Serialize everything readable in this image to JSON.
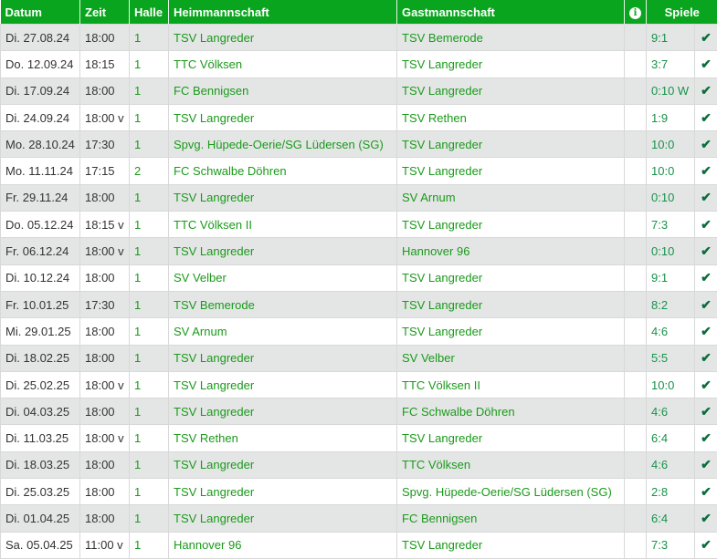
{
  "headers": {
    "datum": "Datum",
    "zeit": "Zeit",
    "halle": "Halle",
    "heim": "Heimmannschaft",
    "gast": "Gastmannschaft",
    "info_icon": "info-icon",
    "spiele": "Spiele"
  },
  "rows": [
    {
      "datum": "Di. 27.08.24",
      "zeit": "18:00",
      "halle": "1",
      "heim": "TSV Langreder",
      "gast": "TSV Bemerode",
      "spiele": "9:1"
    },
    {
      "datum": "Do. 12.09.24",
      "zeit": "18:15",
      "halle": "1",
      "heim": "TTC Völksen",
      "gast": "TSV Langreder",
      "spiele": "3:7"
    },
    {
      "datum": "Di. 17.09.24",
      "zeit": "18:00",
      "halle": "1",
      "heim": "FC Bennigsen",
      "gast": "TSV Langreder",
      "spiele": "0:10 W"
    },
    {
      "datum": "Di. 24.09.24",
      "zeit": "18:00 v",
      "halle": "1",
      "heim": "TSV Langreder",
      "gast": "TSV Rethen",
      "spiele": "1:9"
    },
    {
      "datum": "Mo. 28.10.24",
      "zeit": "17:30",
      "halle": "1",
      "heim": "Spvg. Hüpede-Oerie/SG Lüdersen (SG)",
      "gast": "TSV Langreder",
      "spiele": "10:0"
    },
    {
      "datum": "Mo. 11.11.24",
      "zeit": "17:15",
      "halle": "2",
      "heim": "FC Schwalbe Döhren",
      "gast": "TSV Langreder",
      "spiele": "10:0"
    },
    {
      "datum": "Fr. 29.11.24",
      "zeit": "18:00",
      "halle": "1",
      "heim": "TSV Langreder",
      "gast": "SV Arnum",
      "spiele": "0:10"
    },
    {
      "datum": "Do. 05.12.24",
      "zeit": "18:15 v",
      "halle": "1",
      "heim": "TTC Völksen II",
      "gast": "TSV Langreder",
      "spiele": "7:3"
    },
    {
      "datum": "Fr. 06.12.24",
      "zeit": "18:00 v",
      "halle": "1",
      "heim": "TSV Langreder",
      "gast": "Hannover 96",
      "spiele": "0:10"
    },
    {
      "datum": "Di. 10.12.24",
      "zeit": "18:00",
      "halle": "1",
      "heim": "SV Velber",
      "gast": "TSV Langreder",
      "spiele": "9:1"
    },
    {
      "datum": "Fr. 10.01.25",
      "zeit": "17:30",
      "halle": "1",
      "heim": "TSV Bemerode",
      "gast": "TSV Langreder",
      "spiele": "8:2"
    },
    {
      "datum": "Mi. 29.01.25",
      "zeit": "18:00",
      "halle": "1",
      "heim": "SV Arnum",
      "gast": "TSV Langreder",
      "spiele": "4:6"
    },
    {
      "datum": "Di. 18.02.25",
      "zeit": "18:00",
      "halle": "1",
      "heim": "TSV Langreder",
      "gast": "SV Velber",
      "spiele": "5:5"
    },
    {
      "datum": "Di. 25.02.25",
      "zeit": "18:00 v",
      "halle": "1",
      "heim": "TSV Langreder",
      "gast": "TTC Völksen II",
      "spiele": "10:0"
    },
    {
      "datum": "Di. 04.03.25",
      "zeit": "18:00",
      "halle": "1",
      "heim": "TSV Langreder",
      "gast": "FC Schwalbe Döhren",
      "spiele": "4:6"
    },
    {
      "datum": "Di. 11.03.25",
      "zeit": "18:00 v",
      "halle": "1",
      "heim": "TSV Rethen",
      "gast": "TSV Langreder",
      "spiele": "6:4"
    },
    {
      "datum": "Di. 18.03.25",
      "zeit": "18:00",
      "halle": "1",
      "heim": "TSV Langreder",
      "gast": "TTC Völksen",
      "spiele": "4:6"
    },
    {
      "datum": "Di. 25.03.25",
      "zeit": "18:00",
      "halle": "1",
      "heim": "TSV Langreder",
      "gast": "Spvg. Hüpede-Oerie/SG Lüdersen (SG)",
      "spiele": "2:8"
    },
    {
      "datum": "Di. 01.04.25",
      "zeit": "18:00",
      "halle": "1",
      "heim": "TSV Langreder",
      "gast": "FC Bennigsen",
      "spiele": "6:4"
    },
    {
      "datum": "Sa. 05.04.25",
      "zeit": "11:00 v",
      "halle": "1",
      "heim": "Hannover 96",
      "gast": "TSV Langreder",
      "spiele": "7:3"
    }
  ],
  "colors": {
    "header": "#0aa51e",
    "link": "#1a9a1a",
    "check": "#0b6e3a",
    "alt_row": "#e4e6e6"
  }
}
